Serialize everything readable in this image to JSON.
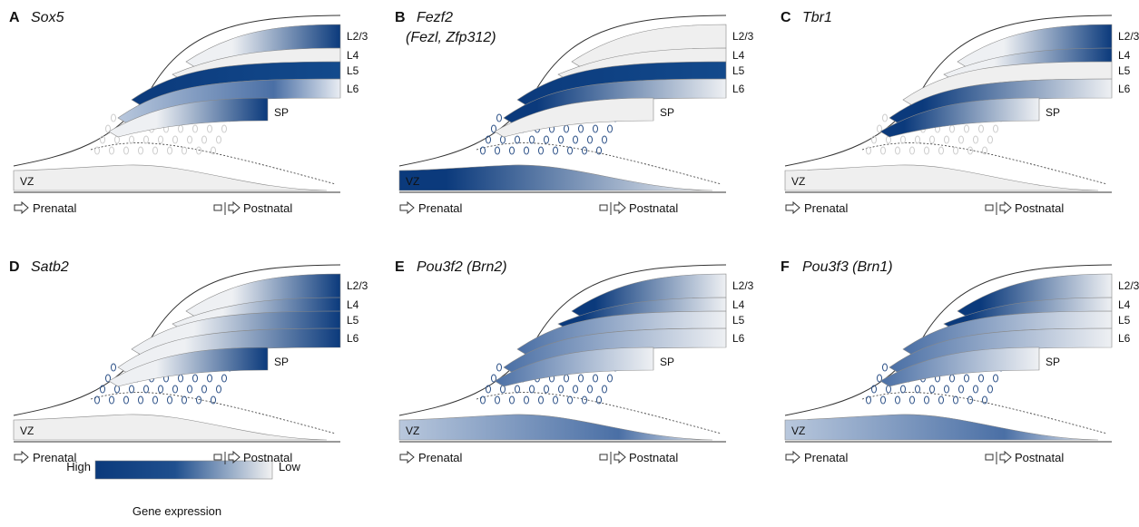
{
  "panels": [
    {
      "letter": "A",
      "gene": "Sox5"
    },
    {
      "letter": "B",
      "gene": "Fezf2",
      "gene_line2": "(Fezl, Zfp312)"
    },
    {
      "letter": "C",
      "gene": "Tbr1"
    },
    {
      "letter": "D",
      "gene": "Satb2"
    },
    {
      "letter": "E",
      "gene": "Pou3f2 (Brn2)"
    },
    {
      "letter": "F",
      "gene": "Pou3f3 (Brn1)"
    }
  ],
  "layer_labels": [
    "L2/3",
    "L4",
    "L5",
    "L6",
    "SP"
  ],
  "vz_label": "VZ",
  "prenatal": "Prenatal",
  "postnatal": "Postnatal",
  "legend": {
    "high": "High",
    "low": "Low",
    "caption": "Gene expression"
  }
}
